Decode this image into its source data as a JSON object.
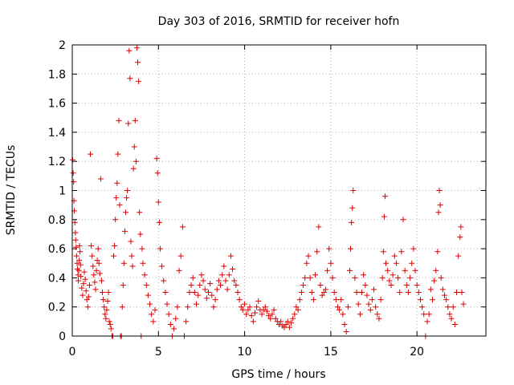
{
  "chart_data": {
    "type": "scatter",
    "title": "Day 303 of 2016, SRMTID for receiver hofn",
    "xlabel": "GPS time / hours",
    "ylabel": "SRMTID / TECUs",
    "xlim": [
      0,
      24
    ],
    "ylim": [
      0,
      2
    ],
    "xticks": [
      0,
      5,
      10,
      15,
      20
    ],
    "yticks": [
      0,
      0.2,
      0.4,
      0.6,
      0.8,
      1,
      1.2,
      1.4,
      1.6,
      1.8,
      2
    ],
    "grid": true,
    "marker": "+",
    "color": "#dd0000",
    "series": [
      {
        "name": "SRMTID",
        "points": [
          [
            0.02,
            1.21
          ],
          [
            0.05,
            1.12
          ],
          [
            0.08,
            1.06
          ],
          [
            0.1,
            0.93
          ],
          [
            0.12,
            0.86
          ],
          [
            0.15,
            0.78
          ],
          [
            0.18,
            0.71
          ],
          [
            0.2,
            0.66
          ],
          [
            0.22,
            0.61
          ],
          [
            0.25,
            0.55
          ],
          [
            0.28,
            0.5
          ],
          [
            0.3,
            0.46
          ],
          [
            0.33,
            0.42
          ],
          [
            0.35,
            0.38
          ],
          [
            0.38,
            0.45
          ],
          [
            0.4,
            0.52
          ],
          [
            0.42,
            0.62
          ],
          [
            0.45,
            0.58
          ],
          [
            0.48,
            0.49
          ],
          [
            0.5,
            0.41
          ],
          [
            0.55,
            0.33
          ],
          [
            0.6,
            0.28
          ],
          [
            0.65,
            0.36
          ],
          [
            0.7,
            0.44
          ],
          [
            0.75,
            0.39
          ],
          [
            0.8,
            0.31
          ],
          [
            0.85,
            0.25
          ],
          [
            0.9,
            0.2
          ],
          [
            0.95,
            0.27
          ],
          [
            1.0,
            0.35
          ],
          [
            1.05,
            1.25
          ],
          [
            1.1,
            0.62
          ],
          [
            1.15,
            0.55
          ],
          [
            1.2,
            0.48
          ],
          [
            1.25,
            0.42
          ],
          [
            1.3,
            0.37
          ],
          [
            1.35,
            0.32
          ],
          [
            1.4,
            0.45
          ],
          [
            1.45,
            0.52
          ],
          [
            1.5,
            0.6
          ],
          [
            1.55,
            0.5
          ],
          [
            1.6,
            0.43
          ],
          [
            1.65,
            1.08
          ],
          [
            1.7,
            0.38
          ],
          [
            1.75,
            0.3
          ],
          [
            1.8,
            0.25
          ],
          [
            1.85,
            0.2
          ],
          [
            1.9,
            0.15
          ],
          [
            1.95,
            0.12
          ],
          [
            2.0,
            0.18
          ],
          [
            2.05,
            0.24
          ],
          [
            2.1,
            0.3
          ],
          [
            2.15,
            0.1
          ],
          [
            2.2,
            0.08
          ],
          [
            2.25,
            0.05
          ],
          [
            2.3,
            0.0
          ],
          [
            2.35,
            0.0
          ],
          [
            2.4,
            0.55
          ],
          [
            2.45,
            0.62
          ],
          [
            2.5,
            0.8
          ],
          [
            2.55,
            0.95
          ],
          [
            2.6,
            1.05
          ],
          [
            2.65,
            1.25
          ],
          [
            2.7,
            1.48
          ],
          [
            2.75,
            0.9
          ],
          [
            2.8,
            0.0
          ],
          [
            2.85,
            0.0
          ],
          [
            2.9,
            0.2
          ],
          [
            2.95,
            0.35
          ],
          [
            3.0,
            0.5
          ],
          [
            3.05,
            0.72
          ],
          [
            3.1,
            0.85
          ],
          [
            3.15,
            0.95
          ],
          [
            3.2,
            1.0
          ],
          [
            3.25,
            1.46
          ],
          [
            3.3,
            1.96
          ],
          [
            3.35,
            1.77
          ],
          [
            3.4,
            0.65
          ],
          [
            3.45,
            0.55
          ],
          [
            3.5,
            0.48
          ],
          [
            3.55,
            1.15
          ],
          [
            3.6,
            1.3
          ],
          [
            3.65,
            1.48
          ],
          [
            3.7,
            1.2
          ],
          [
            3.75,
            1.98
          ],
          [
            3.8,
            1.88
          ],
          [
            3.85,
            1.75
          ],
          [
            3.9,
            0.85
          ],
          [
            3.95,
            0.7
          ],
          [
            4.0,
            0.0
          ],
          [
            4.05,
            0.6
          ],
          [
            4.1,
            0.5
          ],
          [
            4.2,
            0.42
          ],
          [
            4.3,
            0.35
          ],
          [
            4.4,
            0.28
          ],
          [
            4.5,
            0.22
          ],
          [
            4.6,
            0.15
          ],
          [
            4.7,
            0.1
          ],
          [
            4.8,
            0.18
          ],
          [
            4.9,
            1.22
          ],
          [
            4.95,
            1.12
          ],
          [
            5.0,
            0.92
          ],
          [
            5.05,
            0.78
          ],
          [
            5.1,
            0.6
          ],
          [
            5.2,
            0.48
          ],
          [
            5.3,
            0.38
          ],
          [
            5.4,
            0.3
          ],
          [
            5.5,
            0.22
          ],
          [
            5.6,
            0.15
          ],
          [
            5.7,
            0.08
          ],
          [
            5.8,
            0.0
          ],
          [
            5.9,
            0.05
          ],
          [
            6.0,
            0.12
          ],
          [
            6.1,
            0.2
          ],
          [
            6.2,
            0.45
          ],
          [
            6.3,
            0.55
          ],
          [
            6.4,
            0.75
          ],
          [
            6.5,
            0.0
          ],
          [
            6.6,
            0.1
          ],
          [
            6.7,
            0.2
          ],
          [
            6.8,
            0.3
          ],
          [
            6.9,
            0.35
          ],
          [
            7.0,
            0.4
          ],
          [
            7.1,
            0.3
          ],
          [
            7.2,
            0.22
          ],
          [
            7.3,
            0.28
          ],
          [
            7.4,
            0.35
          ],
          [
            7.5,
            0.42
          ],
          [
            7.6,
            0.38
          ],
          [
            7.7,
            0.32
          ],
          [
            7.8,
            0.26
          ],
          [
            7.9,
            0.3
          ],
          [
            8.0,
            0.36
          ],
          [
            8.1,
            0.28
          ],
          [
            8.2,
            0.2
          ],
          [
            8.3,
            0.25
          ],
          [
            8.4,
            0.32
          ],
          [
            8.5,
            0.38
          ],
          [
            8.6,
            0.35
          ],
          [
            8.7,
            0.42
          ],
          [
            8.8,
            0.48
          ],
          [
            8.9,
            0.38
          ],
          [
            9.0,
            0.32
          ],
          [
            9.1,
            0.42
          ],
          [
            9.2,
            0.55
          ],
          [
            9.3,
            0.46
          ],
          [
            9.4,
            0.38
          ],
          [
            9.5,
            0.35
          ],
          [
            9.6,
            0.3
          ],
          [
            9.7,
            0.25
          ],
          [
            9.8,
            0.2
          ],
          [
            9.9,
            0.18
          ],
          [
            10.0,
            0.22
          ],
          [
            10.1,
            0.15
          ],
          [
            10.2,
            0.18
          ],
          [
            10.3,
            0.2
          ],
          [
            10.4,
            0.14
          ],
          [
            10.5,
            0.1
          ],
          [
            10.6,
            0.16
          ],
          [
            10.7,
            0.2
          ],
          [
            10.8,
            0.24
          ],
          [
            10.9,
            0.18
          ],
          [
            11.0,
            0.15
          ],
          [
            11.1,
            0.18
          ],
          [
            11.2,
            0.2
          ],
          [
            11.3,
            0.17
          ],
          [
            11.4,
            0.14
          ],
          [
            11.5,
            0.12
          ],
          [
            11.6,
            0.15
          ],
          [
            11.7,
            0.18
          ],
          [
            11.8,
            0.12
          ],
          [
            11.9,
            0.1
          ],
          [
            12.0,
            0.08
          ],
          [
            12.1,
            0.1
          ],
          [
            12.2,
            0.07
          ],
          [
            12.3,
            0.06
          ],
          [
            12.4,
            0.08
          ],
          [
            12.5,
            0.1
          ],
          [
            12.6,
            0.06
          ],
          [
            12.7,
            0.09
          ],
          [
            12.8,
            0.12
          ],
          [
            12.9,
            0.15
          ],
          [
            13.0,
            0.2
          ],
          [
            13.1,
            0.18
          ],
          [
            13.2,
            0.25
          ],
          [
            13.3,
            0.3
          ],
          [
            13.4,
            0.35
          ],
          [
            13.5,
            0.4
          ],
          [
            13.6,
            0.5
          ],
          [
            13.7,
            0.55
          ],
          [
            13.8,
            0.4
          ],
          [
            13.9,
            0.3
          ],
          [
            14.0,
            0.25
          ],
          [
            14.1,
            0.42
          ],
          [
            14.2,
            0.58
          ],
          [
            14.3,
            0.75
          ],
          [
            14.4,
            0.35
          ],
          [
            14.5,
            0.28
          ],
          [
            14.6,
            0.3
          ],
          [
            14.7,
            0.32
          ],
          [
            14.8,
            0.45
          ],
          [
            14.9,
            0.6
          ],
          [
            15.0,
            0.5
          ],
          [
            15.1,
            0.4
          ],
          [
            15.2,
            0.3
          ],
          [
            15.3,
            0.25
          ],
          [
            15.4,
            0.2
          ],
          [
            15.5,
            0.18
          ],
          [
            15.6,
            0.25
          ],
          [
            15.7,
            0.15
          ],
          [
            15.8,
            0.08
          ],
          [
            15.9,
            0.03
          ],
          [
            16.0,
            0.2
          ],
          [
            16.1,
            0.45
          ],
          [
            16.15,
            0.6
          ],
          [
            16.2,
            0.78
          ],
          [
            16.25,
            0.88
          ],
          [
            16.3,
            1.0
          ],
          [
            16.4,
            0.4
          ],
          [
            16.5,
            0.3
          ],
          [
            16.6,
            0.22
          ],
          [
            16.7,
            0.15
          ],
          [
            16.8,
            0.3
          ],
          [
            16.9,
            0.42
          ],
          [
            17.0,
            0.35
          ],
          [
            17.1,
            0.28
          ],
          [
            17.2,
            0.22
          ],
          [
            17.3,
            0.18
          ],
          [
            17.4,
            0.25
          ],
          [
            17.5,
            0.32
          ],
          [
            17.6,
            0.2
          ],
          [
            17.7,
            0.15
          ],
          [
            17.8,
            0.12
          ],
          [
            17.9,
            0.25
          ],
          [
            18.0,
            0.4
          ],
          [
            18.05,
            0.58
          ],
          [
            18.1,
            0.82
          ],
          [
            18.15,
            0.96
          ],
          [
            18.2,
            0.5
          ],
          [
            18.3,
            0.45
          ],
          [
            18.4,
            0.38
          ],
          [
            18.5,
            0.35
          ],
          [
            18.6,
            0.42
          ],
          [
            18.7,
            0.55
          ],
          [
            18.8,
            0.5
          ],
          [
            18.9,
            0.4
          ],
          [
            19.0,
            0.3
          ],
          [
            19.1,
            0.58
          ],
          [
            19.2,
            0.8
          ],
          [
            19.3,
            0.45
          ],
          [
            19.4,
            0.35
          ],
          [
            19.5,
            0.3
          ],
          [
            19.6,
            0.4
          ],
          [
            19.7,
            0.5
          ],
          [
            19.8,
            0.6
          ],
          [
            19.9,
            0.45
          ],
          [
            20.0,
            0.35
          ],
          [
            20.1,
            0.3
          ],
          [
            20.2,
            0.25
          ],
          [
            20.3,
            0.2
          ],
          [
            20.4,
            0.15
          ],
          [
            20.5,
            0.0
          ],
          [
            20.6,
            0.1
          ],
          [
            20.7,
            0.15
          ],
          [
            20.8,
            0.32
          ],
          [
            20.9,
            0.25
          ],
          [
            21.0,
            0.38
          ],
          [
            21.1,
            0.45
          ],
          [
            21.2,
            0.58
          ],
          [
            21.25,
            0.85
          ],
          [
            21.3,
            1.0
          ],
          [
            21.35,
            0.9
          ],
          [
            21.4,
            0.4
          ],
          [
            21.5,
            0.32
          ],
          [
            21.6,
            0.28
          ],
          [
            21.7,
            0.25
          ],
          [
            21.8,
            0.2
          ],
          [
            21.9,
            0.15
          ],
          [
            22.0,
            0.12
          ],
          [
            22.1,
            0.2
          ],
          [
            22.2,
            0.08
          ],
          [
            22.3,
            0.3
          ],
          [
            22.4,
            0.55
          ],
          [
            22.5,
            0.68
          ],
          [
            22.55,
            0.75
          ],
          [
            22.6,
            0.3
          ],
          [
            22.7,
            0.22
          ]
        ]
      }
    ]
  }
}
